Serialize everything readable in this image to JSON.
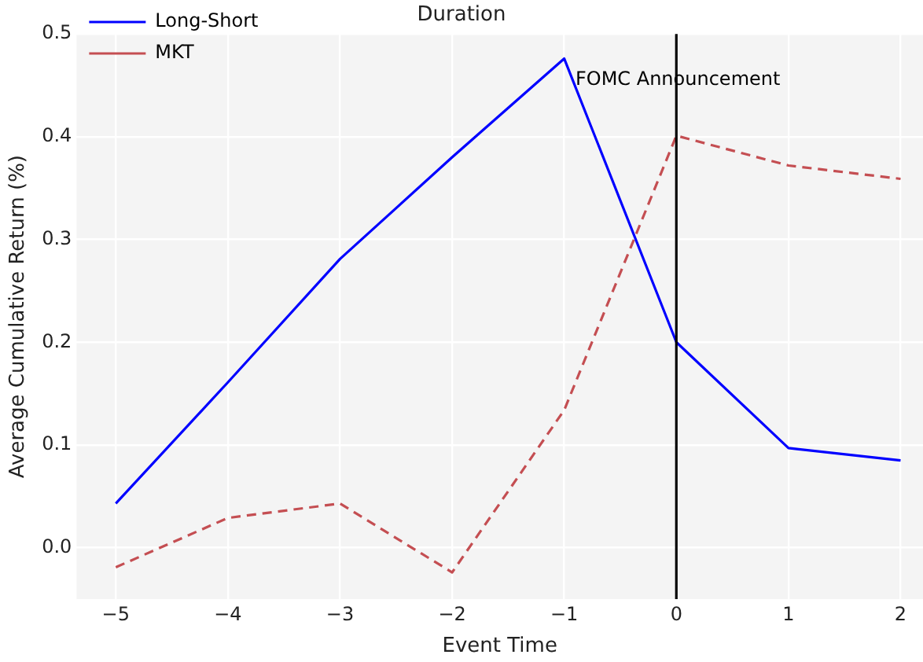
{
  "chart_data": {
    "type": "line",
    "title": "Duration",
    "xlabel": "Event Time",
    "ylabel": "Average Cumulative Return (%)",
    "x": [
      -5,
      -4,
      -3,
      -2,
      -1,
      0,
      1,
      2
    ],
    "series": [
      {
        "name": "Long-Short",
        "color": "#0000ff",
        "line_style": "solid",
        "values": [
          0.043,
          0.161,
          0.281,
          0.38,
          0.476,
          0.2,
          0.097,
          0.085
        ]
      },
      {
        "name": "MKT",
        "color": "#c44e52",
        "line_style": "dashed",
        "values": [
          -0.019,
          0.029,
          0.043,
          -0.024,
          0.134,
          0.401,
          0.372,
          0.359
        ]
      }
    ],
    "xlim": [
      -5.35,
      2.2
    ],
    "xticks": [
      {
        "value": -5,
        "label": "−5"
      },
      {
        "value": -4,
        "label": "−4"
      },
      {
        "value": -3,
        "label": "−3"
      },
      {
        "value": -2,
        "label": "−2"
      },
      {
        "value": -1,
        "label": "−1"
      },
      0,
      1,
      2
    ],
    "ylim": [
      -0.05,
      0.5
    ],
    "yticks": [
      {
        "value": 0,
        "label": "0.0"
      },
      0.1,
      0.2,
      0.3,
      0.4,
      0.5
    ],
    "ref_lines": [
      {
        "axis": "x",
        "value": 0,
        "color": "#000000"
      }
    ],
    "annotations": [
      {
        "text": "FOMC Announcement",
        "x": -0.9,
        "y": 0.455
      }
    ],
    "grid": true,
    "legend": "top left",
    "marker": "none"
  }
}
